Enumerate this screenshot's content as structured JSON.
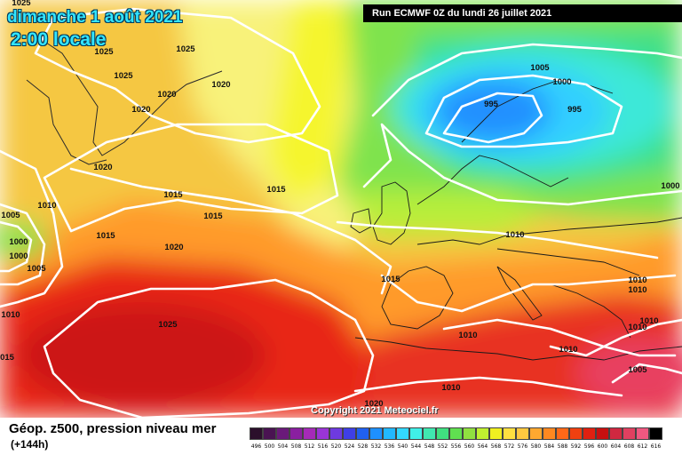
{
  "header": {
    "date": "dimanche 1 août 2021",
    "time": "2:00 locale",
    "run": "Run ECMWF 0Z du lundi 26 juillet 2021"
  },
  "copyright": "Copyright 2021 Meteociel.fr",
  "legend": {
    "title": "Géop. z500, pression niveau mer",
    "subtitle": "(+144h)",
    "scale": [
      {
        "value": "496",
        "color": "#2b0f2b"
      },
      {
        "value": "500",
        "color": "#4a1352"
      },
      {
        "value": "504",
        "color": "#6a1a7a"
      },
      {
        "value": "508",
        "color": "#8a1fa0"
      },
      {
        "value": "512",
        "color": "#a52ab8"
      },
      {
        "value": "516",
        "color": "#9a35d6"
      },
      {
        "value": "520",
        "color": "#6e3ae0"
      },
      {
        "value": "524",
        "color": "#3f3fe6"
      },
      {
        "value": "528",
        "color": "#2060f0"
      },
      {
        "value": "532",
        "color": "#1e90ff"
      },
      {
        "value": "536",
        "color": "#22b8ff"
      },
      {
        "value": "540",
        "color": "#33d8ff"
      },
      {
        "value": "544",
        "color": "#40f0e8"
      },
      {
        "value": "548",
        "color": "#40e8b0"
      },
      {
        "value": "552",
        "color": "#40e080"
      },
      {
        "value": "556",
        "color": "#60e050"
      },
      {
        "value": "560",
        "color": "#90e040"
      },
      {
        "value": "564",
        "color": "#c0f030"
      },
      {
        "value": "568",
        "color": "#f0f020"
      },
      {
        "value": "572",
        "color": "#ffe040"
      },
      {
        "value": "576",
        "color": "#ffc840"
      },
      {
        "value": "580",
        "color": "#ffa830"
      },
      {
        "value": "584",
        "color": "#ff8820"
      },
      {
        "value": "588",
        "color": "#ff6818"
      },
      {
        "value": "592",
        "color": "#f04010"
      },
      {
        "value": "596",
        "color": "#e02010"
      },
      {
        "value": "600",
        "color": "#c81010"
      },
      {
        "value": "604",
        "color": "#d02840"
      },
      {
        "value": "608",
        "color": "#e04060"
      },
      {
        "value": "612",
        "color": "#f05880"
      },
      {
        "value": "616",
        "color": "#000000"
      }
    ]
  },
  "isobars": [
    {
      "value": "1025"
    },
    {
      "value": "1025"
    },
    {
      "value": "1025"
    },
    {
      "value": "1025"
    },
    {
      "value": "1020"
    },
    {
      "value": "1020"
    },
    {
      "value": "1020"
    },
    {
      "value": "1020"
    },
    {
      "value": "1015"
    },
    {
      "value": "1015"
    },
    {
      "value": "1015"
    },
    {
      "value": "1015"
    },
    {
      "value": "1010"
    },
    {
      "value": "1005"
    },
    {
      "value": "1000"
    },
    {
      "value": "1000"
    },
    {
      "value": "1005"
    },
    {
      "value": "1010"
    },
    {
      "value": "015"
    },
    {
      "value": "1020"
    },
    {
      "value": "1025"
    },
    {
      "value": "1005"
    },
    {
      "value": "1000"
    },
    {
      "value": "995"
    },
    {
      "value": "995"
    },
    {
      "value": "1000"
    },
    {
      "value": "1010"
    },
    {
      "value": "1015"
    },
    {
      "value": "1010"
    },
    {
      "value": "1010"
    },
    {
      "value": "1010"
    },
    {
      "value": "1010"
    },
    {
      "value": "1010"
    },
    {
      "value": "1010"
    },
    {
      "value": "1010"
    },
    {
      "value": "1005"
    },
    {
      "value": "1020"
    }
  ]
}
